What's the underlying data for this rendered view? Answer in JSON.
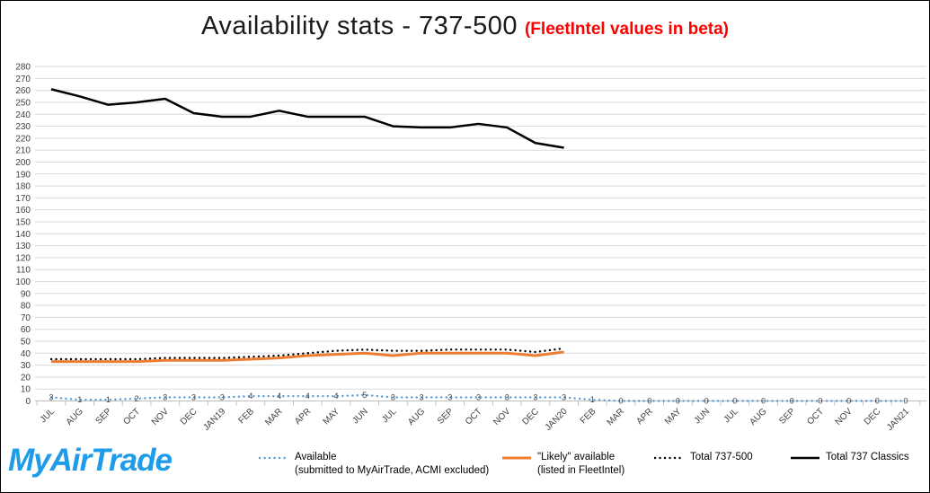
{
  "title": {
    "main": "Availability stats - 737-500",
    "beta_note": "(FleetIntel values in beta)"
  },
  "logo": {
    "text": "MyAirTrade"
  },
  "colors": {
    "available_blue": "#5B9BD5",
    "likely_orange": "#ED7D31",
    "series_black": "#000000",
    "gridline": "#D9D9D9",
    "axis_line": "#BFBFBF",
    "axis_text": "#404040",
    "data_label": "#404040",
    "beta_red": "#FF0000",
    "logo_blue": "#1E9BE9"
  },
  "chart_data": {
    "type": "line",
    "title": "Availability stats - 737-500 (FleetIntel values in beta)",
    "xlabel": "",
    "ylabel": "",
    "ylim": [
      0,
      280
    ],
    "y_step": 10,
    "grid": "horizontal",
    "legend_position": "bottom",
    "categories": [
      "JUL",
      "AUG",
      "SEP",
      "OCT",
      "NOV",
      "DEC",
      "JAN19",
      "FEB",
      "MAR",
      "APR",
      "MAY",
      "JUN",
      "JUL",
      "AUG",
      "SEP",
      "OCT",
      "NOV",
      "DEC",
      "JAN20",
      "FEB",
      "MAR",
      "APR",
      "MAY",
      "JUN",
      "JUL",
      "AUG",
      "SEP",
      "OCT",
      "NOV",
      "DEC",
      "JAN21"
    ],
    "series": [
      {
        "name": "Available",
        "subtitle": "(submitted to MyAirTrade, ACMI excluded)",
        "color": "#5B9BD5",
        "line_style": "dotted",
        "data_labels": true,
        "values": [
          3,
          1,
          1,
          2,
          3,
          3,
          3,
          4,
          4,
          4,
          4,
          5,
          3,
          3,
          3,
          3,
          3,
          3,
          3,
          1,
          0,
          0,
          0,
          0,
          0,
          0,
          0,
          0,
          0,
          0,
          0
        ]
      },
      {
        "name": "\"Likely\" available",
        "subtitle": "(listed in FleetIntel)",
        "color": "#ED7D31",
        "line_style": "solid",
        "data_labels": false,
        "values": [
          33,
          33,
          33,
          33,
          34,
          34,
          34,
          35,
          36,
          38,
          39,
          40,
          38,
          40,
          40,
          40,
          40,
          38,
          41
        ]
      },
      {
        "name": "Total 737-500",
        "subtitle": "",
        "color": "#000000",
        "line_style": "dotted",
        "data_labels": false,
        "values": [
          35,
          35,
          35,
          35,
          36,
          36,
          36,
          37,
          38,
          40,
          42,
          43,
          42,
          42,
          43,
          43,
          43,
          41,
          44
        ]
      },
      {
        "name": "Total 737 Classics",
        "subtitle": "",
        "color": "#000000",
        "line_style": "solid",
        "data_labels": false,
        "values": [
          261,
          255,
          248,
          250,
          253,
          241,
          238,
          238,
          243,
          238,
          238,
          238,
          230,
          229,
          229,
          232,
          229,
          216,
          212
        ]
      }
    ]
  }
}
